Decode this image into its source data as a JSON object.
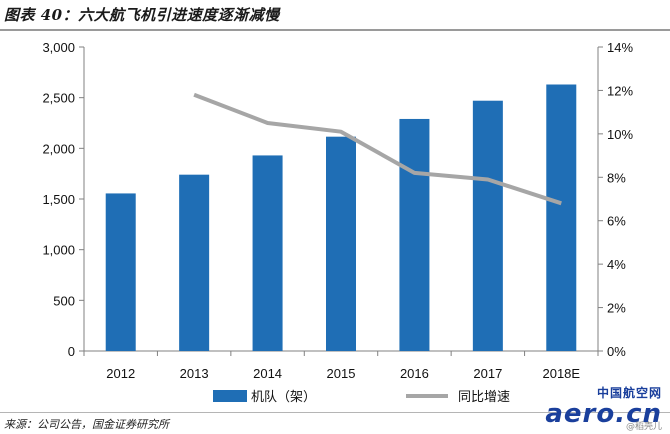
{
  "header": {
    "title": "图表 40：六大航飞机引进速度逐渐减慢"
  },
  "footer": {
    "source": "来源：公司公告，国金证券研究所"
  },
  "watermark": {
    "top": "中国航空网",
    "main": "aero.cn",
    "sub": "@稻壳儿"
  },
  "chart_data": {
    "type": "bar",
    "categories": [
      "2012",
      "2013",
      "2014",
      "2015",
      "2016",
      "2017",
      "2018E"
    ],
    "series": [
      {
        "name": "机队（架）",
        "type": "bar",
        "axis": "left",
        "color": "#1f6eb5",
        "values": [
          1555,
          1740,
          1930,
          2115,
          2290,
          2470,
          2630
        ]
      },
      {
        "name": "同比增速",
        "type": "line",
        "axis": "right",
        "color": "#a6a6a6",
        "values": [
          null,
          11.8,
          10.5,
          10.1,
          8.2,
          7.9,
          6.8
        ]
      }
    ],
    "y_left": {
      "min": 0,
      "max": 3000,
      "ticks": [
        "0",
        "500",
        "1,000",
        "1,500",
        "2,000",
        "2,500",
        "3,000"
      ]
    },
    "y_right": {
      "min": 0,
      "max": 14,
      "ticks": [
        "0%",
        "2%",
        "4%",
        "6%",
        "8%",
        "10%",
        "12%",
        "14%"
      ]
    },
    "legend_position": "bottom",
    "grid": false
  }
}
